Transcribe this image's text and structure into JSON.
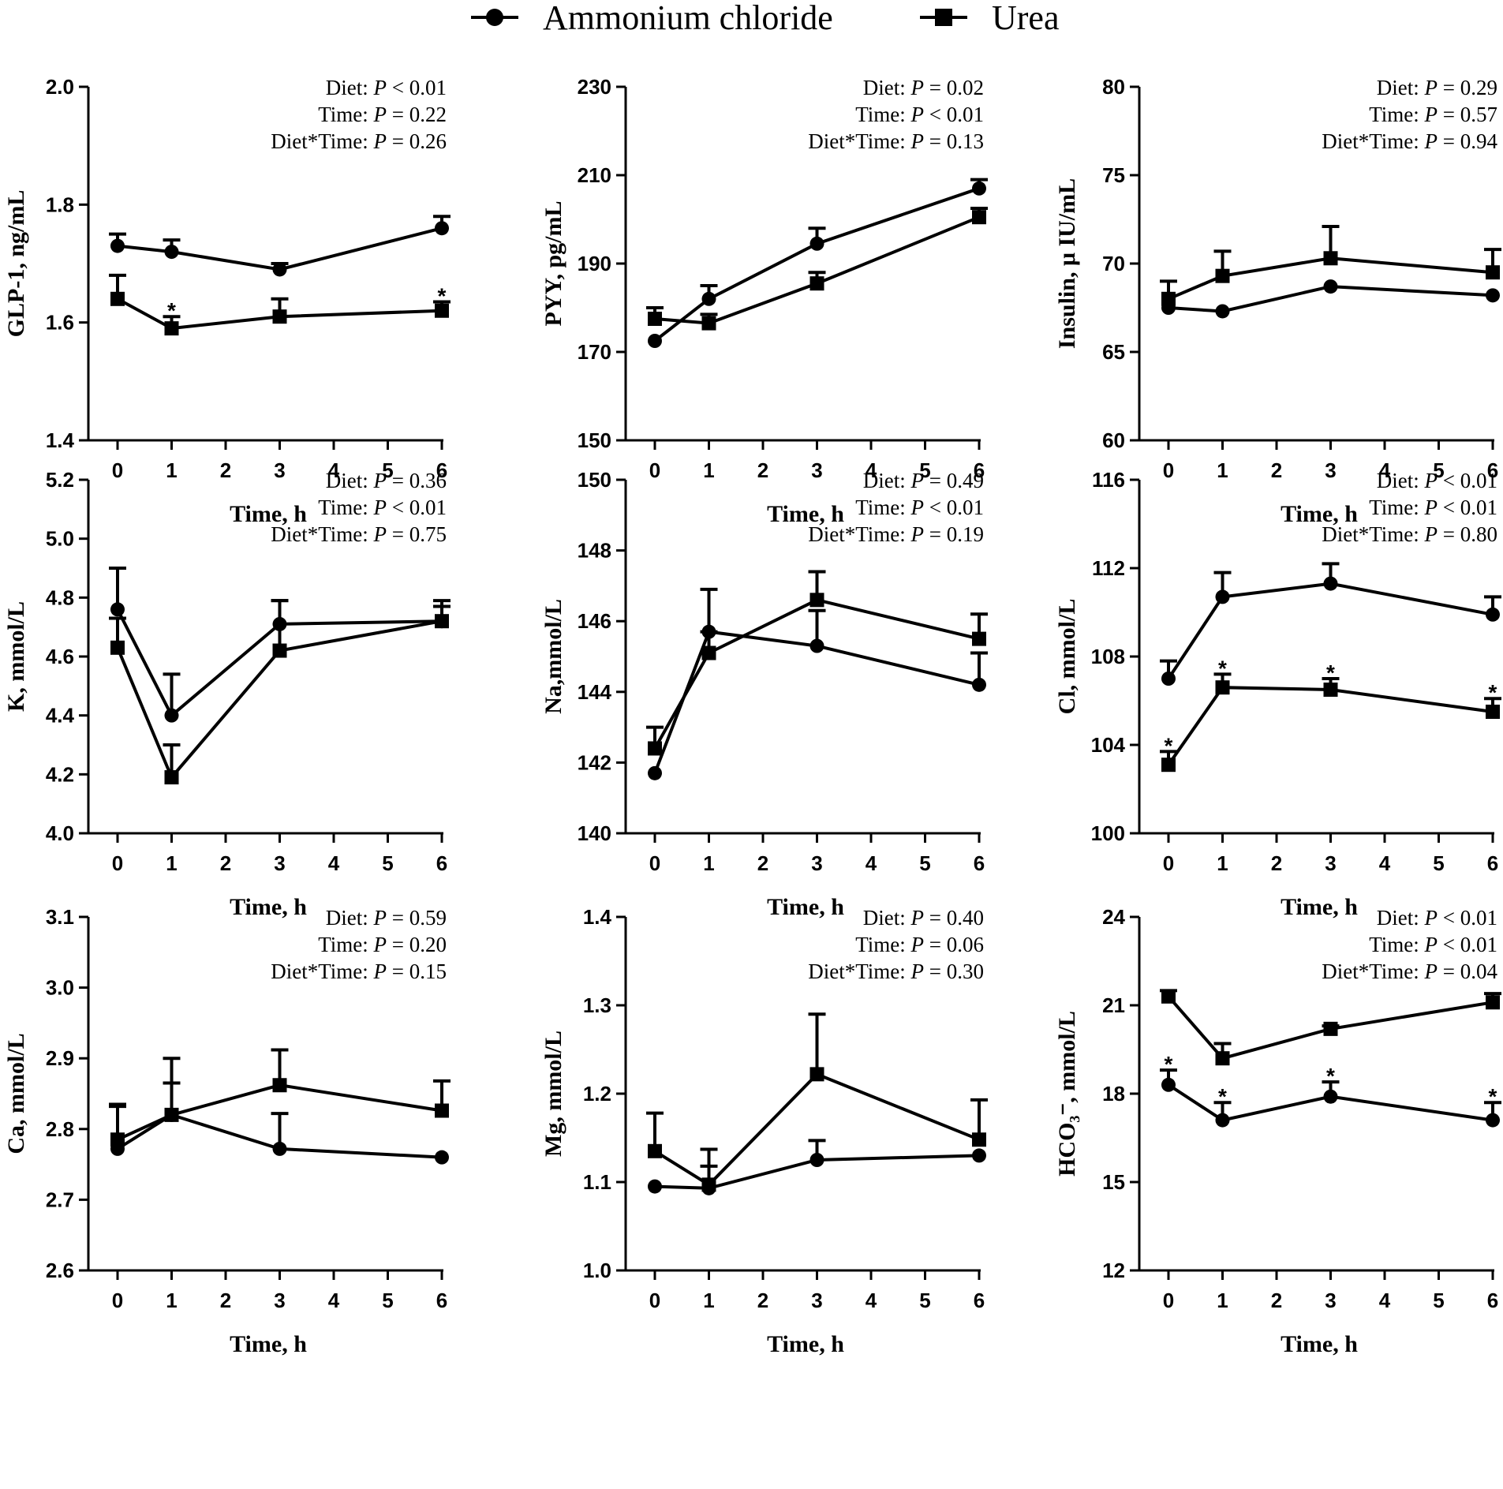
{
  "legend": {
    "entries": [
      {
        "name": "Ammonium chloride",
        "marker": "circle"
      },
      {
        "name": "Urea",
        "marker": "square"
      }
    ]
  },
  "colors": {
    "ink": "#000000",
    "background": "#ffffff"
  },
  "chart_data": [
    {
      "type": "line",
      "panel": "GLP-1",
      "ylabel": "GLP-1, ng/mL",
      "xlabel": "Time, h",
      "ylim": [
        1.4,
        2.0
      ],
      "yticks": [
        "1.4",
        "1.6",
        "1.8",
        "2.0"
      ],
      "xlim": [
        0,
        6
      ],
      "xticks": [
        "0",
        "1",
        "2",
        "3",
        "4",
        "5",
        "6"
      ],
      "stats": [
        {
          "label": "Diet: ",
          "p": "P",
          "value": " < 0.01"
        },
        {
          "label": "Time: ",
          "p": "P",
          "value": " = 0.22"
        },
        {
          "label": "Diet*Time: ",
          "p": "P",
          "value": " = 0.26"
        }
      ],
      "x": [
        0,
        1,
        3,
        6
      ],
      "series": [
        {
          "name": "Ammonium chloride",
          "marker": "circle",
          "values": [
            1.73,
            1.72,
            1.69,
            1.76
          ],
          "error": [
            0.02,
            0.02,
            0.01,
            0.02
          ],
          "sig": []
        },
        {
          "name": "Urea",
          "marker": "square",
          "values": [
            1.64,
            1.59,
            1.61,
            1.62
          ],
          "error": [
            0.04,
            0.02,
            0.03,
            0.015
          ],
          "sig": [
            1,
            6
          ]
        }
      ]
    },
    {
      "type": "line",
      "panel": "PYY",
      "ylabel": "PYY, pg/mL",
      "xlabel": "Time, h",
      "ylim": [
        150,
        230
      ],
      "yticks": [
        "150",
        "170",
        "190",
        "210",
        "230"
      ],
      "xlim": [
        0,
        6
      ],
      "xticks": [
        "0",
        "1",
        "2",
        "3",
        "4",
        "5",
        "6"
      ],
      "stats": [
        {
          "label": "Diet: ",
          "p": "P",
          "value": " = 0.02"
        },
        {
          "label": "Time: ",
          "p": "P",
          "value": " < 0.01"
        },
        {
          "label": "Diet*Time: ",
          "p": "P",
          "value": " = 0.13"
        }
      ],
      "x": [
        0,
        1,
        3,
        6
      ],
      "series": [
        {
          "name": "Ammonium chloride",
          "marker": "circle",
          "values": [
            172.5,
            182,
            194.5,
            207
          ],
          "error": [
            0,
            3,
            3.5,
            2
          ],
          "sig": []
        },
        {
          "name": "Urea",
          "marker": "square",
          "values": [
            177.5,
            176.5,
            185.5,
            200.5
          ],
          "error": [
            2.5,
            2,
            2.5,
            2
          ],
          "sig": []
        }
      ]
    },
    {
      "type": "line",
      "panel": "Insulin",
      "ylabel": "Insulin, μ IU/mL",
      "xlabel": "Time, h",
      "ylim": [
        60,
        80
      ],
      "yticks": [
        "60",
        "65",
        "70",
        "75",
        "80"
      ],
      "xlim": [
        0,
        6
      ],
      "xticks": [
        "0",
        "1",
        "2",
        "3",
        "4",
        "5",
        "6"
      ],
      "stats": [
        {
          "label": "Diet: ",
          "p": "P",
          "value": " = 0.29"
        },
        {
          "label": "Time: ",
          "p": "P",
          "value": " = 0.57"
        },
        {
          "label": "Diet*Time: ",
          "p": "P",
          "value": " = 0.94"
        }
      ],
      "x": [
        0,
        1,
        3,
        6
      ],
      "series": [
        {
          "name": "Ammonium chloride",
          "marker": "circle",
          "values": [
            67.5,
            67.3,
            68.7,
            68.2
          ],
          "error": [
            0,
            0,
            0,
            0
          ],
          "sig": []
        },
        {
          "name": "Urea",
          "marker": "square",
          "values": [
            68.0,
            69.3,
            70.3,
            69.5
          ],
          "error": [
            1.0,
            1.4,
            1.8,
            1.3
          ],
          "sig": []
        }
      ]
    },
    {
      "type": "line",
      "panel": "K",
      "ylabel": "K, mmol/L",
      "xlabel": "Time, h",
      "ylim": [
        4.0,
        5.2
      ],
      "yticks": [
        "4.0",
        "4.2",
        "4.4",
        "4.6",
        "4.8",
        "5.0",
        "5.2"
      ],
      "xlim": [
        0,
        6
      ],
      "xticks": [
        "0",
        "1",
        "2",
        "3",
        "4",
        "5",
        "6"
      ],
      "stats": [
        {
          "label": "Diet: ",
          "p": "P",
          "value": " = 0.36"
        },
        {
          "label": "Time: ",
          "p": "P",
          "value": " < 0.01"
        },
        {
          "label": "Diet*Time: ",
          "p": "P",
          "value": " = 0.75"
        }
      ],
      "x": [
        0,
        1,
        3,
        6
      ],
      "series": [
        {
          "name": "Ammonium chloride",
          "marker": "circle",
          "values": [
            4.76,
            4.4,
            4.71,
            4.72
          ],
          "error": [
            0.14,
            0.14,
            0.08,
            0.05
          ],
          "sig": []
        },
        {
          "name": "Urea",
          "marker": "square",
          "values": [
            4.63,
            4.19,
            4.62,
            4.72
          ],
          "error": [
            0.1,
            0.11,
            0.17,
            0.07
          ],
          "sig": []
        }
      ]
    },
    {
      "type": "line",
      "panel": "Na",
      "ylabel": "Na,mmol/L",
      "xlabel": "Time, h",
      "ylim": [
        140,
        150
      ],
      "yticks": [
        "140",
        "142",
        "144",
        "146",
        "148",
        "150"
      ],
      "xlim": [
        0,
        6
      ],
      "xticks": [
        "0",
        "1",
        "2",
        "3",
        "4",
        "5",
        "6"
      ],
      "stats": [
        {
          "label": "Diet: ",
          "p": "P",
          "value": " = 0.49"
        },
        {
          "label": "Time: ",
          "p": "P",
          "value": " < 0.01"
        },
        {
          "label": "Diet*Time: ",
          "p": "P",
          "value": " = 0.19"
        }
      ],
      "x": [
        0,
        1,
        3,
        6
      ],
      "series": [
        {
          "name": "Ammonium chloride",
          "marker": "circle",
          "values": [
            141.7,
            145.7,
            145.3,
            144.2
          ],
          "error": [
            0,
            1.2,
            1.0,
            0.9
          ],
          "sig": []
        },
        {
          "name": "Urea",
          "marker": "square",
          "values": [
            142.4,
            145.1,
            146.6,
            145.5
          ],
          "error": [
            0.6,
            0.6,
            0.8,
            0.7
          ],
          "sig": []
        }
      ]
    },
    {
      "type": "line",
      "panel": "Cl",
      "ylabel": "Cl, mmol/L",
      "xlabel": "Time, h",
      "ylim": [
        100,
        116
      ],
      "yticks": [
        "100",
        "104",
        "108",
        "112",
        "116"
      ],
      "xlim": [
        0,
        6
      ],
      "xticks": [
        "0",
        "1",
        "2",
        "3",
        "4",
        "5",
        "6"
      ],
      "stats": [
        {
          "label": "Diet: ",
          "p": "P",
          "value": " < 0.01"
        },
        {
          "label": "Time: ",
          "p": "P",
          "value": " < 0.01"
        },
        {
          "label": "Diet*Time: ",
          "p": "P",
          "value": " = 0.80"
        }
      ],
      "x": [
        0,
        1,
        3,
        6
      ],
      "series": [
        {
          "name": "Ammonium chloride",
          "marker": "circle",
          "values": [
            107.0,
            110.7,
            111.3,
            109.9
          ],
          "error": [
            0.8,
            1.1,
            0.9,
            0.8
          ],
          "sig": []
        },
        {
          "name": "Urea",
          "marker": "square",
          "values": [
            103.1,
            106.6,
            106.5,
            105.5
          ],
          "error": [
            0.6,
            0.6,
            0.5,
            0.6
          ],
          "sig": [
            0,
            1,
            3,
            6
          ]
        }
      ]
    },
    {
      "type": "line",
      "panel": "Ca",
      "ylabel": "Ca, mmol/L",
      "xlabel": "Time, h",
      "ylim": [
        2.6,
        3.1
      ],
      "yticks": [
        "2.6",
        "2.7",
        "2.8",
        "2.9",
        "3.0",
        "3.1"
      ],
      "xlim": [
        0,
        6
      ],
      "xticks": [
        "0",
        "1",
        "2",
        "3",
        "4",
        "5",
        "6"
      ],
      "stats": [
        {
          "label": "Diet: ",
          "p": "P",
          "value": " = 0.59"
        },
        {
          "label": "Time: ",
          "p": "P",
          "value": " = 0.20"
        },
        {
          "label": "Diet*Time: ",
          "p": "P",
          "value": " = 0.15"
        }
      ],
      "x": [
        0,
        1,
        3,
        6
      ],
      "series": [
        {
          "name": "Ammonium chloride",
          "marker": "circle",
          "values": [
            2.772,
            2.82,
            2.772,
            2.76
          ],
          "error": [
            0.06,
            0.045,
            0.05,
            0
          ],
          "sig": []
        },
        {
          "name": "Urea",
          "marker": "square",
          "values": [
            2.785,
            2.82,
            2.862,
            2.826
          ],
          "error": [
            0.05,
            0.08,
            0.05,
            0.042
          ],
          "sig": []
        }
      ]
    },
    {
      "type": "line",
      "panel": "Mg",
      "ylabel": "Mg, mmol/L",
      "xlabel": "Time, h",
      "ylim": [
        1.0,
        1.4
      ],
      "yticks": [
        "1.0",
        "1.1",
        "1.2",
        "1.3",
        "1.4"
      ],
      "xlim": [
        0,
        6
      ],
      "xticks": [
        "0",
        "1",
        "2",
        "3",
        "4",
        "5",
        "6"
      ],
      "stats": [
        {
          "label": "Diet: ",
          "p": "P",
          "value": " = 0.40"
        },
        {
          "label": "Time: ",
          "p": "P",
          "value": " = 0.06"
        },
        {
          "label": "Diet*Time: ",
          "p": "P",
          "value": " = 0.30"
        }
      ],
      "x": [
        0,
        1,
        3,
        6
      ],
      "series": [
        {
          "name": "Ammonium chloride",
          "marker": "circle",
          "values": [
            1.095,
            1.093,
            1.125,
            1.13
          ],
          "error": [
            0,
            0.025,
            0.022,
            0
          ],
          "sig": []
        },
        {
          "name": "Urea",
          "marker": "square",
          "values": [
            1.135,
            1.097,
            1.222,
            1.148
          ],
          "error": [
            0.043,
            0.04,
            0.068,
            0.045
          ],
          "sig": []
        }
      ]
    },
    {
      "type": "line",
      "panel": "HCO3",
      "ylabel": "HCO₃⁻, mmol/L",
      "xlabel": "Time, h",
      "ylim": [
        12,
        24
      ],
      "yticks": [
        "12",
        "15",
        "18",
        "21",
        "24"
      ],
      "xlim": [
        0,
        6
      ],
      "xticks": [
        "0",
        "1",
        "2",
        "3",
        "4",
        "5",
        "6"
      ],
      "stats": [
        {
          "label": "Diet: ",
          "p": "P",
          "value": " < 0.01"
        },
        {
          "label": "Time: ",
          "p": "P",
          "value": " < 0.01"
        },
        {
          "label": "Diet*Time: ",
          "p": "P",
          "value": " = 0.04"
        }
      ],
      "x": [
        0,
        1,
        3,
        6
      ],
      "series": [
        {
          "name": "Ammonium chloride",
          "marker": "circle",
          "values": [
            18.3,
            17.1,
            17.9,
            17.1
          ],
          "error": [
            0.5,
            0.6,
            0.5,
            0.6
          ],
          "sig": [
            0,
            1,
            3,
            6
          ]
        },
        {
          "name": "Urea",
          "marker": "square",
          "values": [
            21.3,
            19.2,
            20.2,
            21.1
          ],
          "error": [
            0.2,
            0.5,
            0.1,
            0.3
          ],
          "sig": []
        }
      ]
    }
  ]
}
